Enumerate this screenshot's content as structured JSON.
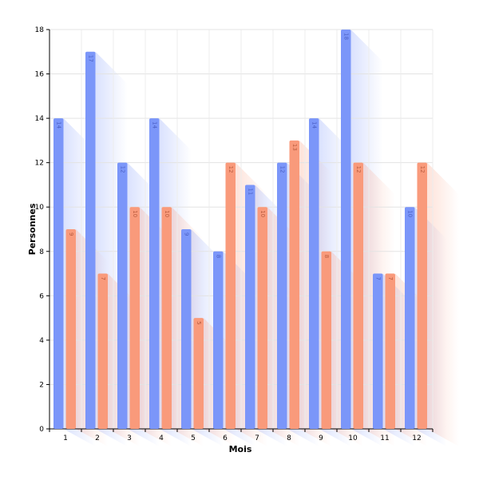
{
  "chart_data": {
    "type": "bar",
    "categories": [
      "1",
      "2",
      "3",
      "4",
      "5",
      "6",
      "7",
      "8",
      "9",
      "10",
      "11",
      "12"
    ],
    "series": [
      {
        "values": [
          14,
          17,
          12,
          14,
          9,
          8,
          11,
          12,
          14,
          18,
          7,
          10
        ],
        "color": "#7b96f9",
        "label_color": "#4a5fc4"
      },
      {
        "values": [
          9,
          7,
          10,
          10,
          5,
          12,
          10,
          13,
          8,
          12,
          7,
          12
        ],
        "color": "#f99a7b",
        "label_color": "#b85a3d"
      }
    ],
    "title": "",
    "xlabel": "Mois",
    "ylabel": "Personnes",
    "ylim": [
      0,
      18
    ],
    "yticks": [
      0,
      2,
      4,
      6,
      8,
      10,
      12,
      14,
      16,
      18
    ],
    "grid": true,
    "legend": "none",
    "data_labels": "inside-top-rotated",
    "shadow": true
  }
}
